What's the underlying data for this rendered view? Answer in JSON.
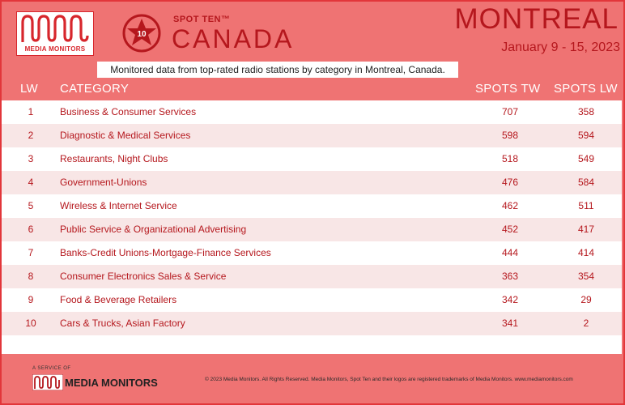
{
  "header": {
    "logo_text": "MEDIA MONITORS",
    "badge_number": "10",
    "spot_ten": "SPOT TEN™",
    "country": "CANADA",
    "city": "MONTREAL",
    "dates": "January 9 - 15, 2023",
    "subtitle": "Monitored data from top-rated radio stations by category in Montreal, Canada."
  },
  "table": {
    "headers": {
      "lw": "LW",
      "category": "CATEGORY",
      "spots_tw": "SPOTS TW",
      "spots_lw": "SPOTS LW"
    },
    "rows": [
      {
        "lw": "1",
        "category": "Business & Consumer Services",
        "spots_tw": "707",
        "spots_lw": "358"
      },
      {
        "lw": "2",
        "category": "Diagnostic & Medical Services",
        "spots_tw": "598",
        "spots_lw": "594"
      },
      {
        "lw": "3",
        "category": "Restaurants, Night Clubs",
        "spots_tw": "518",
        "spots_lw": "549"
      },
      {
        "lw": "4",
        "category": "Government-Unions",
        "spots_tw": "476",
        "spots_lw": "584"
      },
      {
        "lw": "5",
        "category": "Wireless & Internet Service",
        "spots_tw": "462",
        "spots_lw": "511"
      },
      {
        "lw": "6",
        "category": "Public Service & Organizational Advertising",
        "spots_tw": "452",
        "spots_lw": "417"
      },
      {
        "lw": "7",
        "category": "Banks-Credit Unions-Mortgage-Finance Services",
        "spots_tw": "444",
        "spots_lw": "414"
      },
      {
        "lw": "8",
        "category": "Consumer Electronics Sales & Service",
        "spots_tw": "363",
        "spots_lw": "354"
      },
      {
        "lw": "9",
        "category": "Food & Beverage Retailers",
        "spots_tw": "342",
        "spots_lw": "29"
      },
      {
        "lw": "10",
        "category": "Cars & Trucks, Asian Factory",
        "spots_tw": "341",
        "spots_lw": "2"
      }
    ]
  },
  "footer": {
    "service_of": "A SERVICE OF",
    "brand": "MEDIA MONITORS",
    "copyright": "© 2023 Media Monitors. All Rights Reserved. Media Monitors, Spot Ten and their logos are registered trademarks of Media Monitors. www.mediamonitors.com"
  },
  "colors": {
    "accent": "#ef7373",
    "brand_red": "#b5171d",
    "row_alt": "#f8e6e6"
  }
}
